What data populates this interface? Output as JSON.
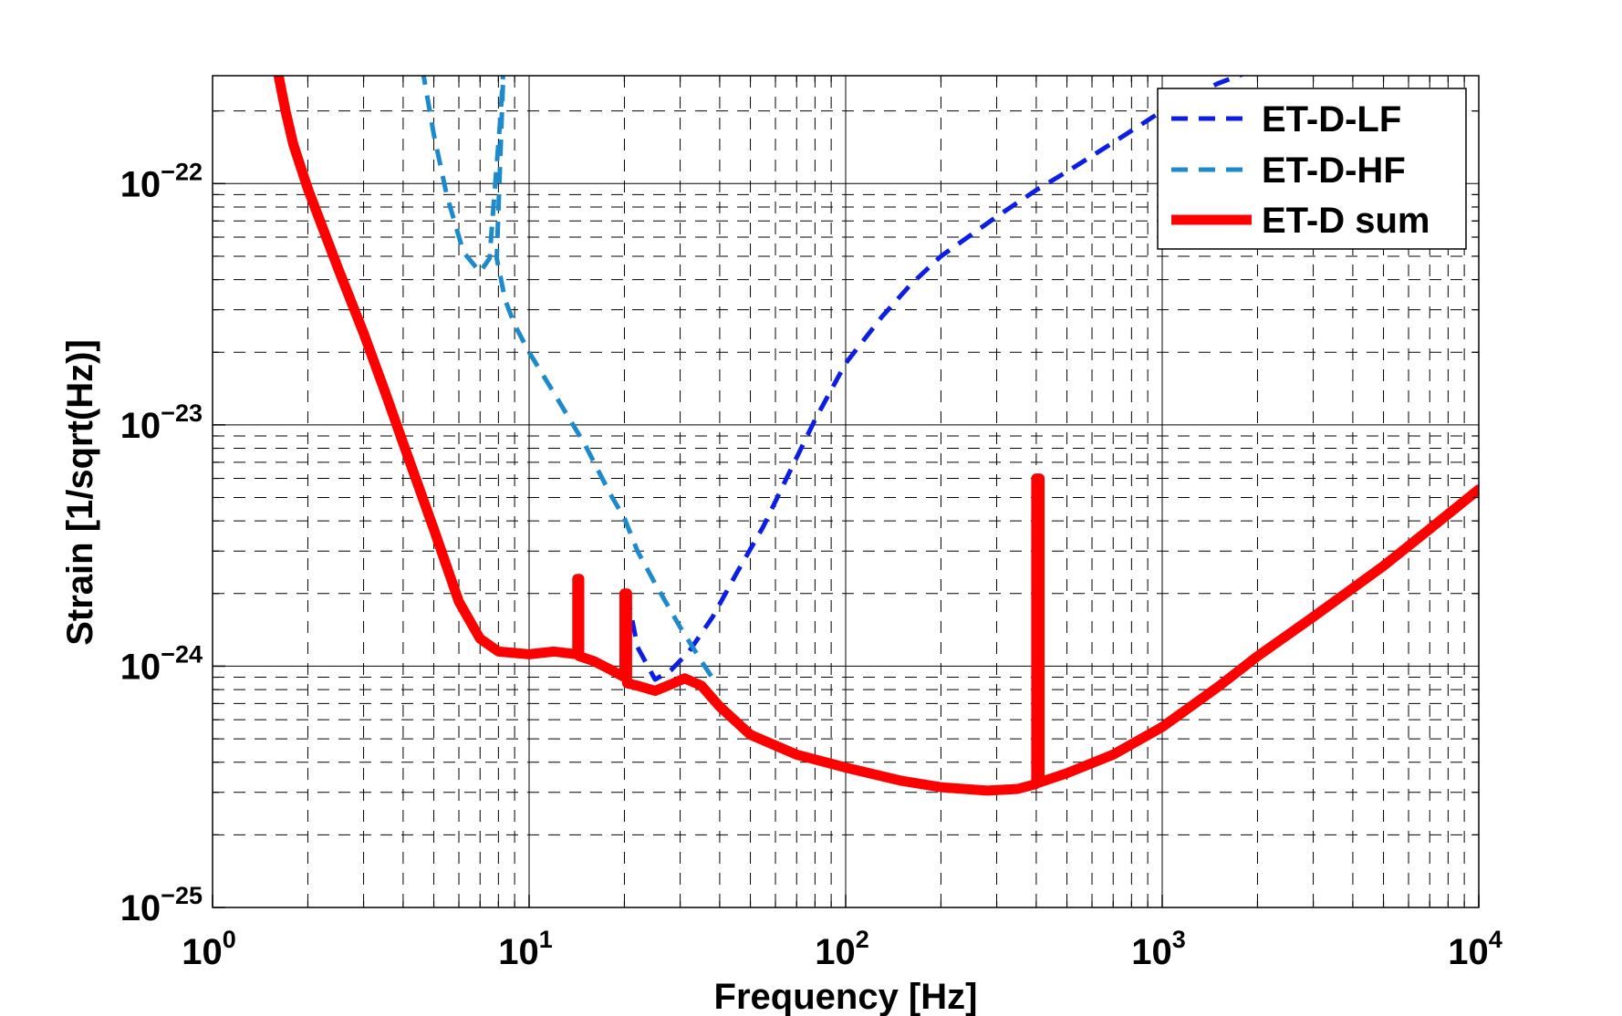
{
  "chart_data": {
    "type": "line",
    "xlabel": "Frequency [Hz]",
    "ylabel": "Strain [1/sqrt(Hz)]",
    "xscale": "log",
    "yscale": "log",
    "xlim": [
      1,
      10000
    ],
    "ylim": [
      1e-25,
      2.8e-22
    ],
    "grid": true,
    "legend_position": "top-right",
    "x_ticks": [
      {
        "base": "10",
        "exp": "0",
        "value": 1
      },
      {
        "base": "10",
        "exp": "1",
        "value": 10
      },
      {
        "base": "10",
        "exp": "2",
        "value": 100
      },
      {
        "base": "10",
        "exp": "3",
        "value": 1000
      },
      {
        "base": "10",
        "exp": "4",
        "value": 10000
      }
    ],
    "y_ticks": [
      {
        "base": "10",
        "exp": "−25",
        "value": 1e-25
      },
      {
        "base": "10",
        "exp": "−24",
        "value": 1e-24
      },
      {
        "base": "10",
        "exp": "−23",
        "value": 1e-23
      },
      {
        "base": "10",
        "exp": "−22",
        "value": 1e-22
      }
    ],
    "series": [
      {
        "name": "ET-D-LF",
        "color": "#0b1ee8",
        "style": "dashed",
        "points": [
          [
            20.4,
            2e-24
          ],
          [
            22,
            1.2e-24
          ],
          [
            25,
            8.8e-25
          ],
          [
            28,
            9.6e-25
          ],
          [
            32,
            1.15e-24
          ],
          [
            38,
            1.6e-24
          ],
          [
            45,
            2.4e-24
          ],
          [
            55,
            3.8e-24
          ],
          [
            65,
            6e-24
          ],
          [
            80,
            1.05e-23
          ],
          [
            100,
            1.8e-23
          ],
          [
            130,
            2.8e-23
          ],
          [
            160,
            3.8e-23
          ],
          [
            200,
            5e-23
          ],
          [
            300,
            7.3e-23
          ],
          [
            400,
            9.4e-23
          ],
          [
            500,
            1.12e-22
          ],
          [
            700,
            1.48e-22
          ],
          [
            1000,
            2e-22
          ],
          [
            1500,
            2.6e-22
          ],
          [
            2000,
            3e-22
          ],
          [
            2600,
            3.5e-22
          ]
        ]
      },
      {
        "name": "ET-D-HF",
        "color": "#1c8acc",
        "style": "dashed",
        "points": [
          [
            4.6,
            3e-22
          ],
          [
            5.0,
            1.6e-22
          ],
          [
            5.5,
            8.9e-23
          ],
          [
            6.2,
            5.2e-23
          ],
          [
            7.0,
            4.3e-23
          ],
          [
            7.5,
            4.9e-23
          ],
          [
            7.9,
            1.2e-22
          ],
          [
            8.1,
            1.8e-22
          ],
          [
            8.3,
            3e-22
          ],
          [
            7.9,
            4.9e-23
          ],
          [
            8.4,
            3.3e-23
          ],
          [
            9.0,
            2.6e-23
          ],
          [
            10,
            2e-23
          ],
          [
            12,
            1.35e-23
          ],
          [
            15,
            8.3e-24
          ],
          [
            18,
            5.2e-24
          ],
          [
            20,
            4.1e-24
          ],
          [
            22,
            3e-24
          ],
          [
            25,
            2.2e-24
          ],
          [
            30,
            1.45e-24
          ],
          [
            35,
            1.05e-24
          ],
          [
            38,
            8.9e-25
          ]
        ]
      },
      {
        "name": "ET-D sum",
        "color": "#ff0000",
        "style": "solid",
        "points": [
          [
            1.6,
            3e-22
          ],
          [
            1.7,
            2e-22
          ],
          [
            1.8,
            1.45e-22
          ],
          [
            2.0,
            9.5e-23
          ],
          [
            2.5,
            4.4e-23
          ],
          [
            3.0,
            2.4e-23
          ],
          [
            3.5,
            1.38e-23
          ],
          [
            4.0,
            8.4e-24
          ],
          [
            5.0,
            3.7e-24
          ],
          [
            6.0,
            1.85e-24
          ],
          [
            7.0,
            1.3e-24
          ],
          [
            8.0,
            1.15e-24
          ],
          [
            10,
            1.12e-24
          ],
          [
            12,
            1.15e-24
          ],
          [
            14.2,
            1.12e-24
          ],
          [
            14.2,
            2.3e-24
          ],
          [
            14.4,
            2.3e-24
          ],
          [
            14.4,
            1.1e-24
          ],
          [
            16,
            1.05e-24
          ],
          [
            18,
            9.7e-25
          ],
          [
            20,
            9e-25
          ],
          [
            20,
            2e-24
          ],
          [
            20.4,
            2e-24
          ],
          [
            20.4,
            8.5e-25
          ],
          [
            22,
            8.3e-25
          ],
          [
            25,
            7.9e-25
          ],
          [
            28,
            8.4e-25
          ],
          [
            31,
            8.9e-25
          ],
          [
            35,
            8.3e-25
          ],
          [
            40,
            6.8e-25
          ],
          [
            50,
            5.2e-25
          ],
          [
            70,
            4.3e-25
          ],
          [
            100,
            3.8e-25
          ],
          [
            150,
            3.35e-25
          ],
          [
            200,
            3.15e-25
          ],
          [
            280,
            3.05e-25
          ],
          [
            350,
            3.1e-25
          ],
          [
            400,
            3.25e-25
          ],
          [
            400,
            6e-24
          ],
          [
            410,
            6e-24
          ],
          [
            410,
            3.3e-25
          ],
          [
            500,
            3.6e-25
          ],
          [
            700,
            4.3e-25
          ],
          [
            1000,
            5.6e-25
          ],
          [
            1500,
            8.2e-25
          ],
          [
            2000,
            1.1e-24
          ],
          [
            3000,
            1.6e-24
          ],
          [
            5000,
            2.6e-24
          ],
          [
            7000,
            3.7e-24
          ],
          [
            10000,
            5.4e-24
          ]
        ]
      }
    ]
  }
}
